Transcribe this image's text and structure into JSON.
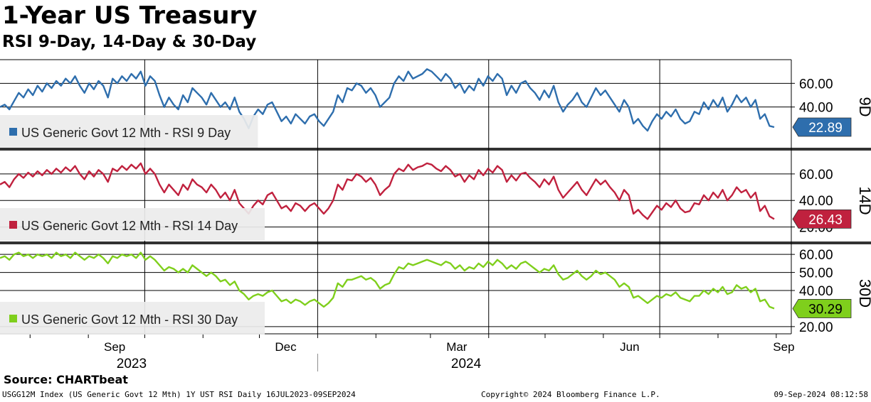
{
  "title": "1-Year US Treasury",
  "subtitle": "RSI 9-Day, 14-Day & 30-Day",
  "source": "Source: CHARTbeat",
  "footer": {
    "left": "USGG12M Index (US Generic Govt 12 Mth) 1Y UST RSI  Daily 16JUL2023-09SEP2024",
    "middle": "Copyright© 2024 Bloomberg Finance L.P.",
    "right": "09-Sep-2024 08:12:58"
  },
  "chart_data": {
    "type": "line",
    "x_range": [
      "2023-07-16",
      "2024-09-09"
    ],
    "month_ticks": [
      {
        "label": "Sep",
        "date": "2023-09-15"
      },
      {
        "label": "Dec",
        "date": "2023-12-15"
      },
      {
        "label": "Mar",
        "date": "2024-03-15"
      },
      {
        "label": "Jun",
        "date": "2024-06-15"
      },
      {
        "label": "Sep",
        "date": "2024-09-05"
      }
    ],
    "year_labels": [
      {
        "label": "2023",
        "date": "2023-09-24"
      },
      {
        "label": "2024",
        "date": "2024-03-20"
      }
    ],
    "year_divider": "2024-01-01",
    "quarter_lines": [
      "2023-10-01",
      "2024-01-01",
      "2024-04-01",
      "2024-07-01"
    ],
    "panels": [
      {
        "tag": "9D",
        "legend": "US Generic Govt 12 Mth - RSI 9 Day",
        "color": "#2e6ead",
        "last_value": "22.89",
        "ylim": [
          5,
          80
        ],
        "ticks": [
          {
            "v": 60,
            "label": "60.00"
          },
          {
            "v": 40,
            "label": "40.00"
          }
        ],
        "values": [
          40,
          42,
          38,
          45,
          52,
          48,
          55,
          50,
          58,
          53,
          60,
          56,
          62,
          58,
          64,
          60,
          66,
          58,
          52,
          60,
          55,
          62,
          58,
          48,
          64,
          60,
          66,
          62,
          68,
          64,
          70,
          58,
          66,
          62,
          50,
          40,
          48,
          42,
          38,
          50,
          44,
          56,
          52,
          48,
          42,
          52,
          46,
          40,
          44,
          38,
          48,
          36,
          30,
          22,
          32,
          38,
          34,
          42,
          44,
          36,
          28,
          32,
          26,
          34,
          30,
          26,
          32,
          34,
          28,
          24,
          30,
          36,
          50,
          44,
          56,
          54,
          60,
          58,
          52,
          56,
          50,
          40,
          44,
          48,
          60,
          66,
          62,
          70,
          64,
          66,
          68,
          72,
          70,
          66,
          62,
          68,
          64,
          56,
          60,
          52,
          58,
          54,
          64,
          58,
          66,
          62,
          68,
          64,
          50,
          58,
          52,
          60,
          62,
          56,
          52,
          46,
          54,
          48,
          58,
          44,
          36,
          42,
          46,
          52,
          44,
          40,
          48,
          56,
          50,
          54,
          48,
          42,
          36,
          46,
          40,
          26,
          30,
          24,
          20,
          28,
          34,
          30,
          36,
          32,
          38,
          30,
          26,
          28,
          36,
          34,
          44,
          38,
          46,
          40,
          48,
          36,
          42,
          50,
          44,
          48,
          40,
          46,
          30,
          34,
          24,
          23
        ]
      },
      {
        "tag": "14D",
        "legend": "US Generic Govt 12 Mth - RSI 14 Day",
        "color": "#c0213e",
        "last_value": "26.43",
        "ylim": [
          8,
          76
        ],
        "ticks": [
          {
            "v": 60,
            "label": "60.00"
          },
          {
            "v": 40,
            "label": "40.00"
          },
          {
            "v": 20,
            "label": "20.00"
          }
        ],
        "values": [
          52,
          54,
          50,
          56,
          60,
          57,
          61,
          58,
          62,
          59,
          63,
          60,
          64,
          61,
          65,
          62,
          66,
          60,
          56,
          62,
          58,
          63,
          60,
          54,
          64,
          62,
          66,
          63,
          67,
          64,
          68,
          60,
          64,
          60,
          52,
          46,
          52,
          48,
          44,
          52,
          48,
          56,
          52,
          50,
          46,
          52,
          48,
          42,
          46,
          40,
          48,
          38,
          34,
          30,
          36,
          40,
          37,
          44,
          46,
          40,
          34,
          36,
          32,
          38,
          36,
          32,
          36,
          38,
          34,
          30,
          34,
          40,
          52,
          48,
          56,
          55,
          60,
          58,
          54,
          57,
          52,
          44,
          48,
          51,
          60,
          64,
          62,
          67,
          63,
          65,
          66,
          68,
          67,
          64,
          62,
          66,
          63,
          58,
          60,
          54,
          59,
          56,
          63,
          59,
          64,
          61,
          66,
          63,
          54,
          59,
          55,
          60,
          61,
          57,
          54,
          50,
          56,
          52,
          58,
          48,
          42,
          46,
          50,
          54,
          48,
          44,
          50,
          56,
          52,
          55,
          50,
          46,
          40,
          48,
          44,
          30,
          33,
          29,
          26,
          31,
          36,
          33,
          38,
          35,
          40,
          34,
          31,
          32,
          38,
          37,
          44,
          40,
          46,
          42,
          48,
          40,
          44,
          50,
          46,
          48,
          42,
          46,
          32,
          36,
          28,
          26
        ]
      },
      {
        "tag": "30D",
        "legend": "US Generic Govt 12 Mth - RSI 30 Day",
        "color": "#7fcf1c",
        "last_value": "30.29",
        "ylim": [
          16,
          64
        ],
        "ticks": [
          {
            "v": 60,
            "label": "60.00"
          },
          {
            "v": 50,
            "label": "50.00"
          },
          {
            "v": 40,
            "label": "40.00"
          },
          {
            "v": 20,
            "label": "20.00"
          }
        ],
        "values": [
          58,
          59,
          57,
          60,
          61,
          59,
          60,
          58,
          60,
          59,
          60,
          58,
          61,
          59,
          60,
          58,
          61,
          59,
          57,
          59,
          58,
          60,
          58,
          55,
          59,
          58,
          60,
          59,
          60,
          58,
          61,
          57,
          59,
          57,
          54,
          51,
          53,
          52,
          50,
          52,
          50,
          54,
          52,
          50,
          48,
          50,
          48,
          45,
          46,
          43,
          45,
          40,
          38,
          35,
          37,
          38,
          37,
          39,
          40,
          37,
          34,
          35,
          33,
          35,
          34,
          32,
          34,
          35,
          33,
          31,
          33,
          36,
          44,
          42,
          46,
          46,
          47,
          48,
          46,
          47,
          45,
          41,
          43,
          44,
          49,
          53,
          52,
          55,
          54,
          55,
          56,
          57,
          56,
          55,
          54,
          56,
          55,
          52,
          54,
          51,
          53,
          52,
          55,
          53,
          56,
          54,
          57,
          55,
          52,
          54,
          52,
          55,
          56,
          54,
          52,
          50,
          52,
          51,
          54,
          49,
          46,
          47,
          49,
          51,
          48,
          46,
          48,
          51,
          49,
          50,
          48,
          46,
          42,
          44,
          42,
          36,
          37,
          35,
          33,
          35,
          37,
          36,
          38,
          37,
          39,
          36,
          35,
          34,
          37,
          37,
          40,
          38,
          41,
          39,
          42,
          38,
          39,
          43,
          41,
          42,
          39,
          41,
          34,
          35,
          31,
          30
        ]
      }
    ]
  }
}
